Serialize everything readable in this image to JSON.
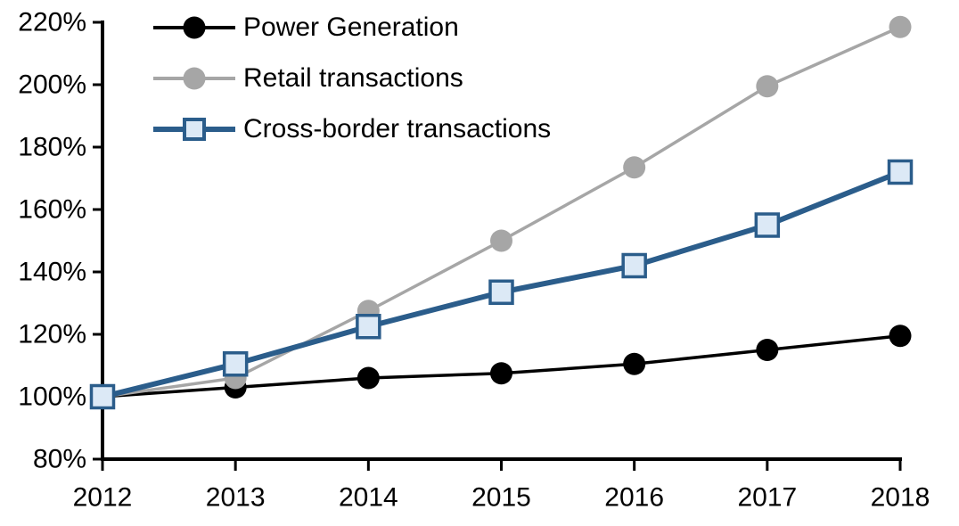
{
  "chart_data": {
    "type": "line",
    "title": "",
    "xlabel": "",
    "ylabel": "",
    "grid": false,
    "legend_position": "top-left-inside",
    "categories": [
      "2012",
      "2013",
      "2014",
      "2015",
      "2016",
      "2017",
      "2018"
    ],
    "y_axis": {
      "min": 80,
      "max": 220,
      "step": 20,
      "unit": "%",
      "tick_labels": [
        "80%",
        "100%",
        "120%",
        "140%",
        "160%",
        "180%",
        "200%",
        "220%"
      ]
    },
    "axis_color": "#000000",
    "series": [
      {
        "name": "Power Generation",
        "color": "#000000",
        "marker": "circle",
        "marker_fill": "#000000",
        "line_width": 3.5,
        "values": [
          100,
          103,
          106,
          107.5,
          110.5,
          115,
          119.5
        ]
      },
      {
        "name": "Retail transactions",
        "color": "#A6A6A6",
        "marker": "circle",
        "marker_fill": "#A6A6A6",
        "line_width": 3.5,
        "values": [
          100,
          106,
          127.5,
          150,
          173.5,
          199.5,
          218.5
        ]
      },
      {
        "name": "Cross-border transactions",
        "color": "#2B5D8B",
        "marker": "square",
        "marker_fill": "#DCE9F6",
        "line_width": 6,
        "values": [
          100,
          110.5,
          122.5,
          133.5,
          142,
          155,
          172
        ]
      }
    ]
  }
}
